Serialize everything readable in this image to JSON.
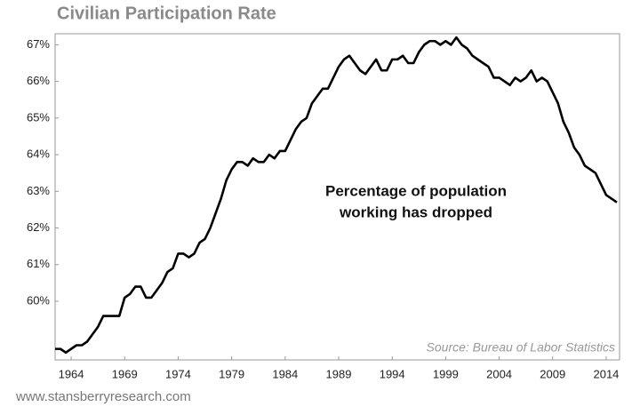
{
  "chart_data": {
    "type": "line",
    "title": "Civilian Participation Rate",
    "annotation": [
      "Percentage of population",
      "working has dropped"
    ],
    "source": "Source: Bureau of Labor Statistics",
    "footer": "www.stansberryresearch.com",
    "grid": false,
    "color": "#000000",
    "xlim": [
      1962.5,
      2015.25
    ],
    "xticks": [
      1964,
      1969,
      1974,
      1979,
      1984,
      1989,
      1994,
      1999,
      2004,
      2009,
      2014
    ],
    "ylim": [
      58.4,
      67.3
    ],
    "yticks": [
      {
        "value": 60,
        "label": "60%"
      },
      {
        "value": 61,
        "label": "61%"
      },
      {
        "value": 62,
        "label": "62%"
      },
      {
        "value": 63,
        "label": "63%"
      },
      {
        "value": 64,
        "label": "64%"
      },
      {
        "value": 65,
        "label": "65%"
      },
      {
        "value": 66,
        "label": "66%"
      },
      {
        "value": 67,
        "label": "67%"
      }
    ],
    "x": [
      1962.5,
      1963,
      1963.5,
      1964,
      1964.5,
      1965,
      1965.5,
      1966,
      1966.5,
      1967,
      1967.5,
      1968,
      1968.5,
      1969,
      1969.5,
      1970,
      1970.5,
      1971,
      1971.5,
      1972,
      1972.5,
      1973,
      1973.5,
      1974,
      1974.5,
      1975,
      1975.5,
      1976,
      1976.5,
      1977,
      1977.5,
      1978,
      1978.5,
      1979,
      1979.5,
      1980,
      1980.5,
      1981,
      1981.5,
      1982,
      1982.5,
      1983,
      1983.5,
      1984,
      1984.5,
      1985,
      1985.5,
      1986,
      1986.5,
      1987,
      1987.5,
      1988,
      1988.5,
      1989,
      1989.5,
      1990,
      1990.5,
      1991,
      1991.5,
      1992,
      1992.5,
      1993,
      1993.5,
      1994,
      1994.5,
      1995,
      1995.5,
      1996,
      1996.5,
      1997,
      1997.5,
      1998,
      1998.5,
      1999,
      1999.5,
      2000,
      2000.5,
      2001,
      2001.5,
      2002,
      2002.5,
      2003,
      2003.5,
      2004,
      2004.5,
      2005,
      2005.5,
      2006,
      2006.5,
      2007,
      2007.5,
      2008,
      2008.5,
      2009,
      2009.5,
      2010,
      2010.5,
      2011,
      2011.5,
      2012,
      2012.5,
      2013,
      2013.5,
      2014,
      2014.5,
      2015
    ],
    "values": [
      58.7,
      58.7,
      58.6,
      58.7,
      58.8,
      58.8,
      58.9,
      59.1,
      59.3,
      59.6,
      59.6,
      59.6,
      59.6,
      60.1,
      60.2,
      60.4,
      60.4,
      60.1,
      60.1,
      60.3,
      60.5,
      60.8,
      60.9,
      61.3,
      61.3,
      61.2,
      61.3,
      61.6,
      61.7,
      62.0,
      62.4,
      62.8,
      63.3,
      63.6,
      63.8,
      63.8,
      63.7,
      63.9,
      63.8,
      63.8,
      64.0,
      63.9,
      64.1,
      64.1,
      64.4,
      64.7,
      64.9,
      65.0,
      65.4,
      65.6,
      65.8,
      65.8,
      66.1,
      66.4,
      66.6,
      66.7,
      66.5,
      66.3,
      66.2,
      66.4,
      66.6,
      66.3,
      66.3,
      66.6,
      66.6,
      66.7,
      66.5,
      66.5,
      66.8,
      67.0,
      67.1,
      67.1,
      67.0,
      67.1,
      67.0,
      67.2,
      67.0,
      66.9,
      66.7,
      66.6,
      66.5,
      66.4,
      66.1,
      66.1,
      66.0,
      65.9,
      66.1,
      66.0,
      66.1,
      66.3,
      66.0,
      66.1,
      66.0,
      65.7,
      65.4,
      64.9,
      64.6,
      64.2,
      64.0,
      63.7,
      63.6,
      63.5,
      63.2,
      62.9,
      62.8,
      62.7
    ]
  }
}
